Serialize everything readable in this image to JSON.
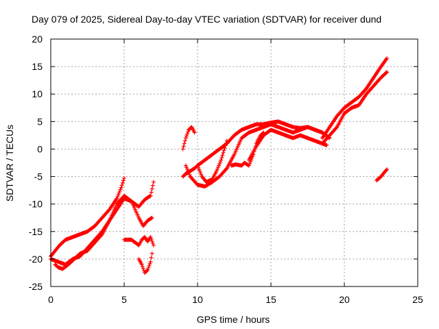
{
  "chart_data": {
    "type": "scatter",
    "title": "Day 079 of 2025, Sidereal Day-to-day VTEC variation (SDTVAR) for receiver dund",
    "xlabel": "GPS time / hours",
    "ylabel": "SDTVAR / TECUs",
    "xlim": [
      0,
      25
    ],
    "ylim": [
      -25,
      20
    ],
    "x_ticks": [
      0,
      5,
      10,
      15,
      20,
      25
    ],
    "y_ticks": [
      -25,
      -20,
      -15,
      -10,
      -5,
      0,
      5,
      10,
      15,
      20
    ],
    "grid": true,
    "legend": "none",
    "marker": "plus",
    "series_color": "#ff0000",
    "series": [
      {
        "x": [
          0.0,
          0.3,
          0.6,
          1.0,
          1.5,
          2.0,
          2.5,
          3.0,
          3.5,
          4.0,
          4.5,
          4.8,
          5.0
        ],
        "y": [
          -19.5,
          -18.5,
          -17.5,
          -16.5,
          -16.0,
          -15.5,
          -15.0,
          -14.0,
          -12.5,
          -11.0,
          -9.0,
          -7.0,
          -5.3
        ]
      },
      {
        "x": [
          0.0,
          0.5,
          1.0,
          1.5,
          2.0,
          2.5,
          3.0,
          3.5,
          4.0,
          4.5,
          5.0,
          5.5,
          6.0,
          6.3,
          6.5,
          6.8,
          7.0
        ],
        "y": [
          -20.0,
          -20.5,
          -21.0,
          -20.0,
          -19.5,
          -18.0,
          -16.5,
          -15.0,
          -13.0,
          -11.0,
          -9.0,
          -9.5,
          -10.5,
          -9.5,
          -9.0,
          -8.5,
          -6.0
        ]
      },
      {
        "x": [
          0.3,
          0.5,
          0.8,
          1.2,
          1.6,
          2.0,
          2.5,
          3.0,
          3.5,
          4.0,
          4.5,
          5.0,
          5.5,
          6.0,
          6.3,
          6.6,
          6.9
        ],
        "y": [
          -21.0,
          -21.5,
          -21.8,
          -21.0,
          -20.0,
          -19.0,
          -18.5,
          -17.0,
          -15.5,
          -13.0,
          -10.0,
          -8.5,
          -9.5,
          -12.5,
          -14.0,
          -13.0,
          -12.5
        ]
      },
      {
        "x": [
          5.0,
          5.5,
          6.0,
          6.2,
          6.4,
          6.6,
          6.8,
          7.0
        ],
        "y": [
          -16.5,
          -16.5,
          -17.5,
          -16.5,
          -16.0,
          -16.8,
          -16.0,
          -17.5
        ]
      },
      {
        "x": [
          6.0,
          6.2,
          6.4,
          6.6,
          6.8,
          6.9
        ],
        "y": [
          -20.0,
          -21.0,
          -22.5,
          -22.0,
          -20.5,
          -19.0
        ]
      },
      {
        "x": [
          9.0,
          9.2,
          9.5,
          9.8,
          10.0,
          10.5,
          11.0,
          11.5,
          12.0,
          12.5,
          13.0,
          13.5,
          14.0,
          14.5,
          15.0,
          15.5,
          16.0,
          16.5,
          17.0,
          17.5,
          18.0,
          18.5
        ],
        "y": [
          -5.0,
          -4.5,
          -4.0,
          -3.5,
          -3.0,
          -2.0,
          -1.0,
          0.0,
          1.0,
          2.5,
          3.5,
          4.0,
          4.5,
          4.5,
          4.8,
          5.0,
          4.5,
          4.0,
          3.8,
          4.0,
          3.5,
          3.0
        ]
      },
      {
        "x": [
          9.2,
          9.5,
          10.0,
          10.5,
          11.0,
          11.5,
          12.0,
          12.5,
          13.0,
          13.5,
          14.0,
          14.5,
          15.0,
          15.5,
          16.0,
          16.5,
          17.0,
          17.5,
          18.0,
          18.5,
          19.0
        ],
        "y": [
          -3.0,
          -5.0,
          -6.5,
          -6.8,
          -6.0,
          -5.0,
          -3.5,
          -1.0,
          2.0,
          3.0,
          3.5,
          4.0,
          4.5,
          4.0,
          3.5,
          3.0,
          3.5,
          4.0,
          3.5,
          3.0,
          2.0
        ]
      },
      {
        "x": [
          9.0,
          9.2,
          9.4,
          9.6,
          9.8
        ],
        "y": [
          0.0,
          2.0,
          3.5,
          4.0,
          3.0
        ]
      },
      {
        "x": [
          10.0,
          10.3,
          10.6,
          11.0,
          11.3,
          11.6,
          12.0
        ],
        "y": [
          -3.0,
          -5.0,
          -6.0,
          -5.5,
          -4.0,
          -2.0,
          1.5
        ]
      },
      {
        "x": [
          12.3,
          12.6,
          13.0,
          13.2,
          13.5,
          13.8,
          14.0,
          14.3,
          14.5
        ],
        "y": [
          -3.0,
          -2.8,
          -3.0,
          -2.5,
          -3.0,
          -1.0,
          1.0,
          2.5,
          3.0
        ]
      },
      {
        "x": [
          13.5,
          14.0,
          14.5,
          15.0,
          15.5,
          16.0,
          16.5,
          17.0,
          17.5,
          18.0,
          18.5,
          18.8
        ],
        "y": [
          -2.0,
          0.5,
          2.5,
          3.5,
          3.0,
          2.5,
          2.0,
          2.5,
          2.0,
          1.5,
          1.0,
          0.7
        ]
      },
      {
        "x": [
          18.5,
          19.0,
          19.5,
          20.0,
          20.5,
          21.0,
          21.5,
          22.0,
          22.5,
          22.9
        ],
        "y": [
          2.0,
          4.0,
          6.0,
          7.5,
          8.5,
          9.5,
          11.0,
          13.0,
          15.0,
          16.5
        ]
      },
      {
        "x": [
          18.5,
          19.0,
          19.5,
          20.0,
          20.5,
          21.0,
          21.5,
          22.0,
          22.5,
          22.9
        ],
        "y": [
          1.0,
          2.5,
          4.0,
          6.5,
          7.5,
          8.0,
          10.0,
          11.5,
          13.0,
          14.0
        ]
      },
      {
        "x": [
          22.2,
          22.5,
          22.8,
          22.9
        ],
        "y": [
          -5.7,
          -5.0,
          -4.0,
          -3.7
        ]
      }
    ]
  }
}
